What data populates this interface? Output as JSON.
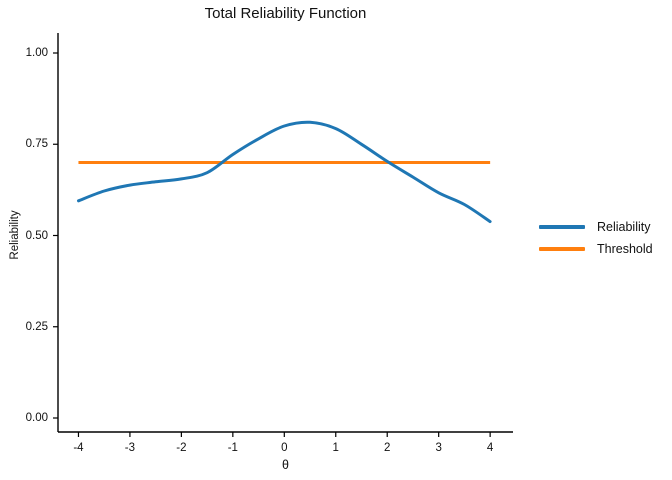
{
  "title": "Total Reliability Function",
  "axes": {
    "x_label": "θ",
    "y_label": "Reliability",
    "x_ticks": [
      {
        "value": -4,
        "label": "-4"
      },
      {
        "value": -3,
        "label": "-3"
      },
      {
        "value": -2,
        "label": "-2"
      },
      {
        "value": -1,
        "label": "-1"
      },
      {
        "value": 0,
        "label": "0"
      },
      {
        "value": 1,
        "label": "1"
      },
      {
        "value": 2,
        "label": "2"
      },
      {
        "value": 3,
        "label": "3"
      },
      {
        "value": 4,
        "label": "4"
      }
    ],
    "y_ticks": [
      {
        "value": 0.0,
        "label": "0.00"
      },
      {
        "value": 0.25,
        "label": "0.25"
      },
      {
        "value": 0.5,
        "label": "0.50"
      },
      {
        "value": 0.75,
        "label": "0.75"
      },
      {
        "value": 1.0,
        "label": "1.00"
      }
    ]
  },
  "legend": {
    "items": [
      {
        "label": "Reliability",
        "color": "#1f77b4"
      },
      {
        "label": "Threshold",
        "color": "#ff7f0e"
      }
    ]
  },
  "colors": {
    "reliability_line": "#1f77b4",
    "threshold_line": "#ff7f0e",
    "axis": "#000000",
    "text": "#111111"
  },
  "chart_data": {
    "type": "line",
    "title": "Total Reliability Function",
    "xlabel": "θ",
    "ylabel": "Reliability",
    "xlim": [
      -4.4,
      4.4
    ],
    "ylim": [
      -0.04,
      1.05
    ],
    "grid": false,
    "legend_position": "right",
    "x": [
      -4,
      -3.5,
      -3,
      -2.5,
      -2,
      -1.5,
      -1,
      -0.5,
      0,
      0.5,
      1,
      1.5,
      2,
      2.5,
      3,
      3.5,
      4
    ],
    "series": [
      {
        "name": "Reliability",
        "color": "#1f77b4",
        "values": [
          0.595,
          0.622,
          0.638,
          0.647,
          0.655,
          0.672,
          0.722,
          0.765,
          0.8,
          0.81,
          0.793,
          0.75,
          0.703,
          0.66,
          0.617,
          0.585,
          0.538
        ]
      },
      {
        "name": "Threshold",
        "color": "#ff7f0e",
        "values": [
          0.7,
          0.7,
          0.7,
          0.7,
          0.7,
          0.7,
          0.7,
          0.7,
          0.7,
          0.7,
          0.7,
          0.7,
          0.7,
          0.7,
          0.7,
          0.7,
          0.7
        ]
      }
    ]
  }
}
